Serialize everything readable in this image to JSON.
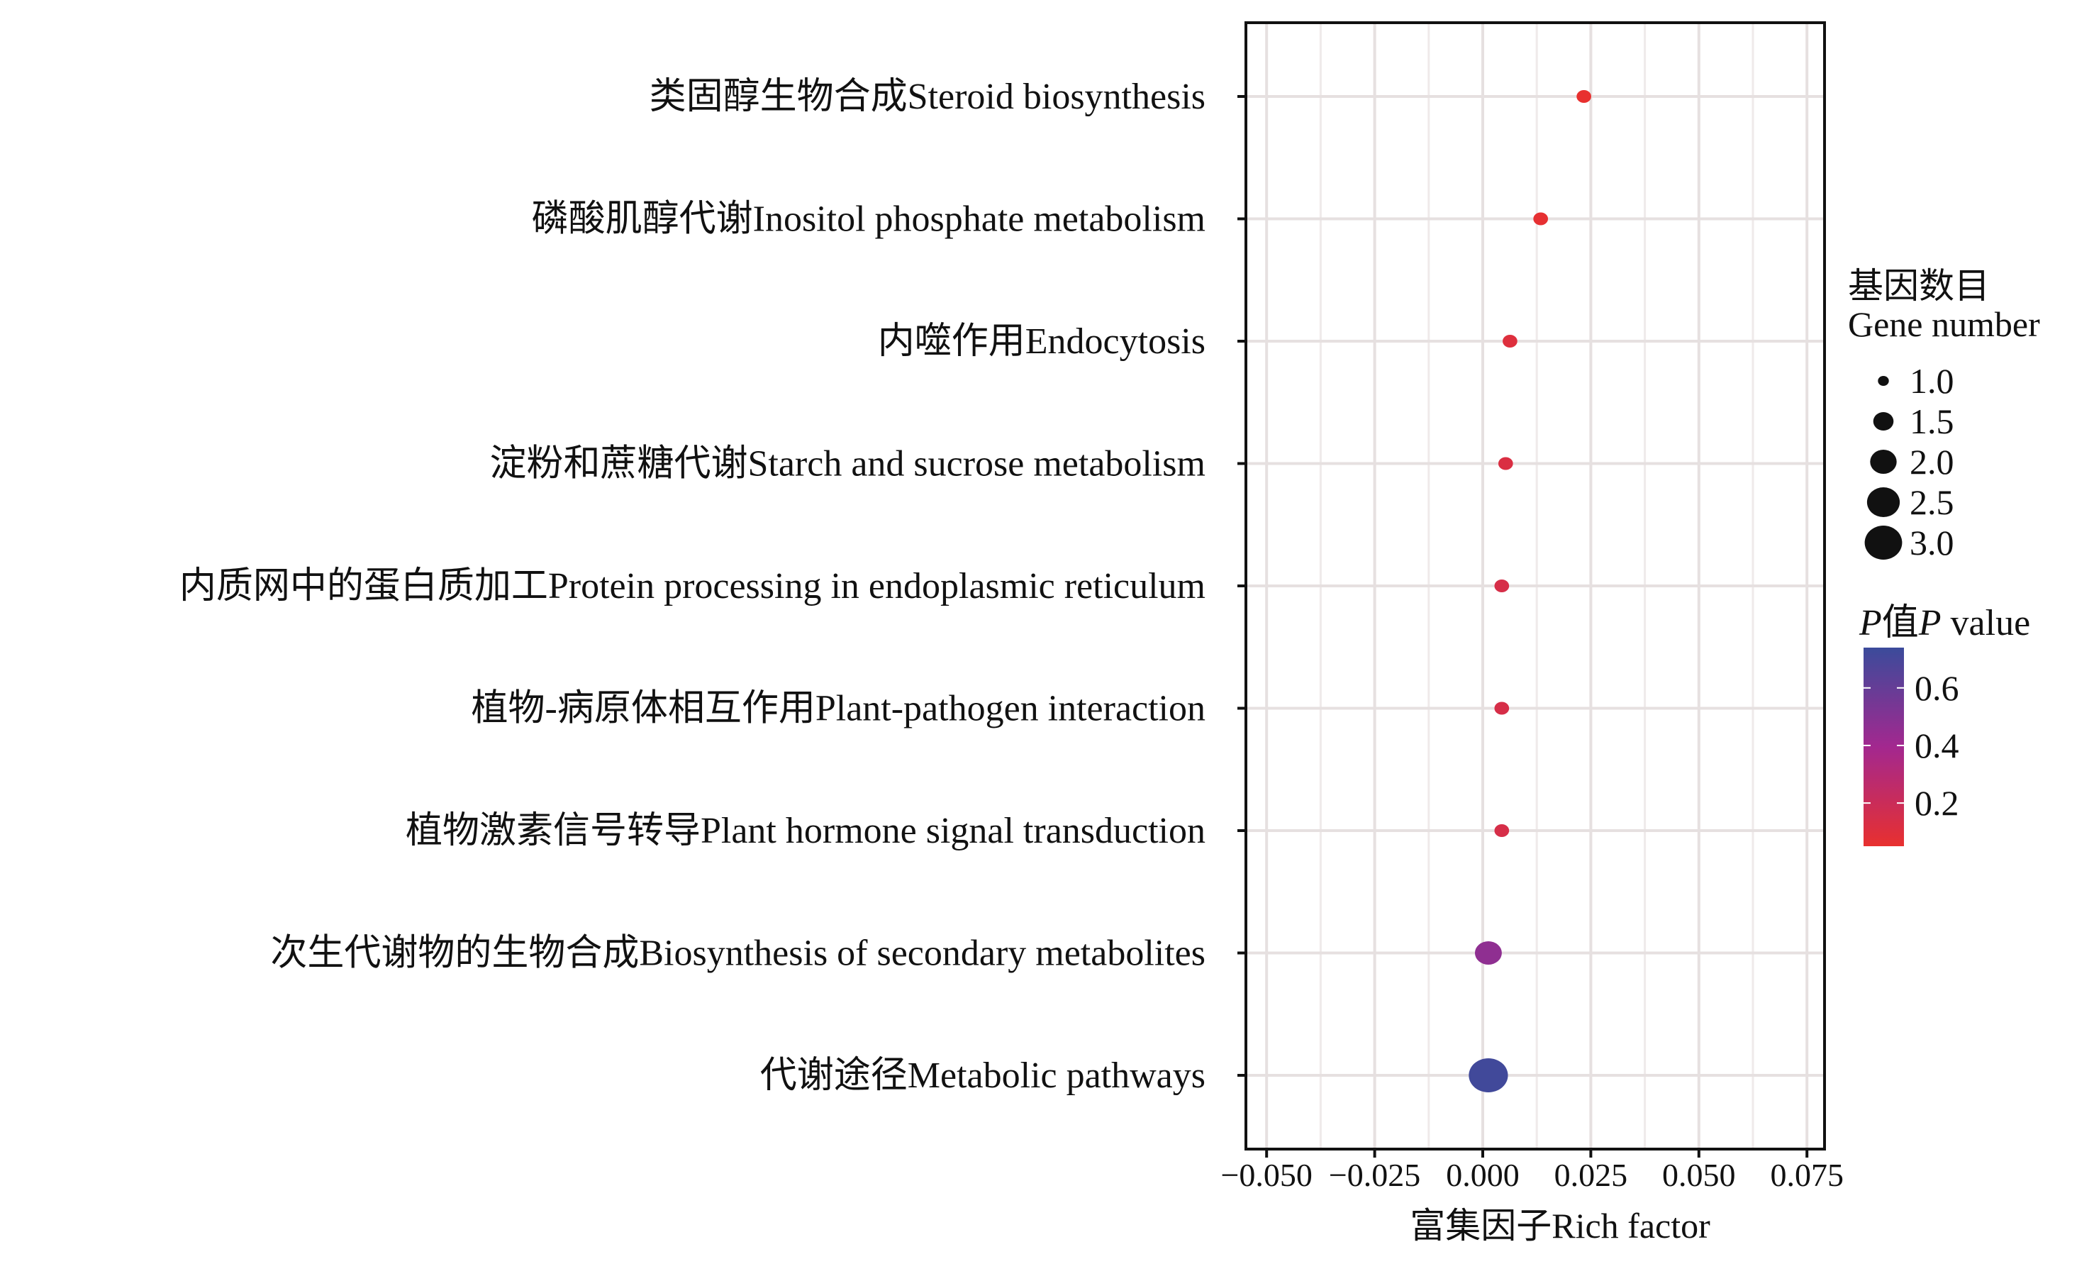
{
  "chart_data": {
    "type": "scatter",
    "title": "",
    "xlabel": "富集因子Rich factor",
    "ylabel": "",
    "xlim": [
      -0.053,
      0.078
    ],
    "x_ticks": [
      -0.05,
      -0.025,
      0.0,
      0.025,
      0.05,
      0.075
    ],
    "x_tick_labels": [
      "−0.050",
      "−0.025",
      "0.000",
      "0.025",
      "0.050",
      "0.075"
    ],
    "grid": true,
    "legend_placement": "right",
    "categories": [
      "类固醇生物合成Steroid biosynthesis",
      "磷酸肌醇代谢Inositol phosphate metabolism",
      "内噬作用Endocytosis",
      "淀粉和蔗糖代谢Starch and sucrose metabolism",
      "内质网中的蛋白质加工Protein processing in endoplasmic reticulum",
      "植物-病原体相互作用Plant-pathogen interaction",
      "植物激素信号转导Plant hormone signal transduction",
      "次生代谢物的生物合成Biosynthesis of secondary metabolites",
      "代谢途径Metabolic pathways"
    ],
    "rich_factor": [
      0.0234,
      0.0134,
      0.0063,
      0.0053,
      0.0044,
      0.0044,
      0.0044,
      0.0013,
      0.0013
    ],
    "gene_number": [
      1,
      1,
      1,
      1,
      1,
      1,
      1,
      2,
      3
    ],
    "p_value": [
      0.05,
      0.06,
      0.1,
      0.12,
      0.14,
      0.14,
      0.14,
      0.46,
      0.72
    ],
    "size_legend": {
      "title_cn": "基因数目",
      "title_en": "Gene number",
      "values": [
        1.0,
        1.5,
        2.0,
        2.5,
        3.0
      ],
      "labels": [
        "1.0",
        "1.5",
        "2.0",
        "2.5",
        "3.0"
      ]
    },
    "color_legend": {
      "title_p1": "P",
      "title_cn": "值",
      "title_p2": "P",
      "title_rest": " value",
      "range": [
        0.05,
        0.74
      ],
      "ticks": [
        0.2,
        0.4,
        0.6
      ],
      "tick_labels": [
        "0.2",
        "0.4",
        "0.6"
      ],
      "low_color": "#e8302f",
      "mid_color": "#a3288f",
      "high_color": "#3b4b9b"
    }
  }
}
